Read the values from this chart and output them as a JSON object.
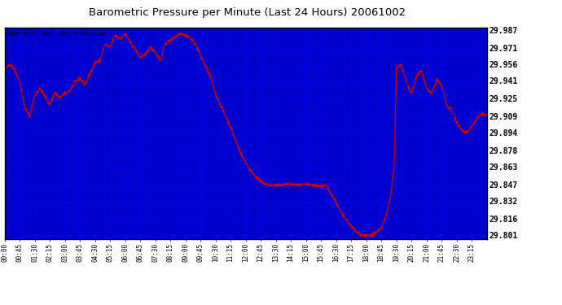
{
  "title": "Barometric Pressure per Minute (Last 24 Hours) 20061002",
  "subtitle": "Copyright 2006 Cartronics.com",
  "plot_bg_color": "#0000cc",
  "outer_bg_color": "#ffffff",
  "line_color": "#cc0000",
  "grid_color": "#0000ff",
  "title_color": "#000000",
  "ytick_labels": [
    29.801,
    29.816,
    29.832,
    29.847,
    29.863,
    29.878,
    29.894,
    29.909,
    29.925,
    29.941,
    29.956,
    29.971,
    29.987
  ],
  "ymin": 29.798,
  "ymax": 29.99,
  "xtick_labels": [
    "00:00",
    "00:45",
    "01:30",
    "02:15",
    "03:00",
    "03:45",
    "04:30",
    "05:15",
    "06:00",
    "06:45",
    "07:30",
    "08:15",
    "09:00",
    "09:45",
    "10:30",
    "11:15",
    "12:00",
    "12:45",
    "13:30",
    "14:15",
    "15:00",
    "15:45",
    "16:30",
    "17:15",
    "18:00",
    "18:45",
    "19:30",
    "20:15",
    "21:00",
    "21:45",
    "22:30",
    "23:15"
  ],
  "line_width": 1.0,
  "waypoints": [
    [
      0,
      29.951
    ],
    [
      15,
      29.957
    ],
    [
      30,
      29.952
    ],
    [
      45,
      29.942
    ],
    [
      60,
      29.918
    ],
    [
      75,
      29.91
    ],
    [
      90,
      29.928
    ],
    [
      105,
      29.935
    ],
    [
      120,
      29.928
    ],
    [
      135,
      29.92
    ],
    [
      150,
      29.931
    ],
    [
      165,
      29.926
    ],
    [
      180,
      29.93
    ],
    [
      195,
      29.933
    ],
    [
      210,
      29.94
    ],
    [
      225,
      29.944
    ],
    [
      240,
      29.938
    ],
    [
      255,
      29.948
    ],
    [
      270,
      29.958
    ],
    [
      285,
      29.96
    ],
    [
      300,
      29.975
    ],
    [
      315,
      29.972
    ],
    [
      330,
      29.983
    ],
    [
      345,
      29.98
    ],
    [
      360,
      29.984
    ],
    [
      375,
      29.977
    ],
    [
      390,
      29.97
    ],
    [
      405,
      29.963
    ],
    [
      420,
      29.965
    ],
    [
      435,
      29.972
    ],
    [
      450,
      29.968
    ],
    [
      465,
      29.96
    ],
    [
      480,
      29.975
    ],
    [
      495,
      29.978
    ],
    [
      510,
      29.982
    ],
    [
      525,
      29.985
    ],
    [
      540,
      29.983
    ],
    [
      555,
      29.98
    ],
    [
      570,
      29.975
    ],
    [
      585,
      29.965
    ],
    [
      600,
      29.955
    ],
    [
      615,
      29.945
    ],
    [
      630,
      29.93
    ],
    [
      645,
      29.92
    ],
    [
      660,
      29.91
    ],
    [
      675,
      29.9
    ],
    [
      690,
      29.888
    ],
    [
      705,
      29.876
    ],
    [
      720,
      29.868
    ],
    [
      735,
      29.86
    ],
    [
      750,
      29.855
    ],
    [
      765,
      29.85
    ],
    [
      780,
      29.848
    ],
    [
      795,
      29.847
    ],
    [
      810,
      29.847
    ],
    [
      825,
      29.847
    ],
    [
      840,
      29.848
    ],
    [
      855,
      29.848
    ],
    [
      870,
      29.847
    ],
    [
      885,
      29.847
    ],
    [
      900,
      29.848
    ],
    [
      915,
      29.847
    ],
    [
      930,
      29.847
    ],
    [
      945,
      29.846
    ],
    [
      960,
      29.847
    ],
    [
      975,
      29.84
    ],
    [
      990,
      29.832
    ],
    [
      1005,
      29.822
    ],
    [
      1020,
      29.816
    ],
    [
      1035,
      29.81
    ],
    [
      1050,
      29.805
    ],
    [
      1065,
      29.802
    ],
    [
      1080,
      29.801
    ],
    [
      1095,
      29.802
    ],
    [
      1110,
      29.804
    ],
    [
      1125,
      29.808
    ],
    [
      1140,
      29.82
    ],
    [
      1155,
      29.84
    ],
    [
      1165,
      29.87
    ],
    [
      1170,
      29.953
    ],
    [
      1185,
      29.956
    ],
    [
      1200,
      29.94
    ],
    [
      1215,
      29.93
    ],
    [
      1230,
      29.945
    ],
    [
      1245,
      29.952
    ],
    [
      1260,
      29.935
    ],
    [
      1275,
      29.93
    ],
    [
      1290,
      29.942
    ],
    [
      1305,
      29.938
    ],
    [
      1320,
      29.92
    ],
    [
      1335,
      29.915
    ],
    [
      1350,
      29.905
    ],
    [
      1365,
      29.897
    ],
    [
      1380,
      29.894
    ],
    [
      1395,
      29.9
    ],
    [
      1410,
      29.907
    ],
    [
      1425,
      29.912
    ],
    [
      1440,
      29.91
    ]
  ]
}
